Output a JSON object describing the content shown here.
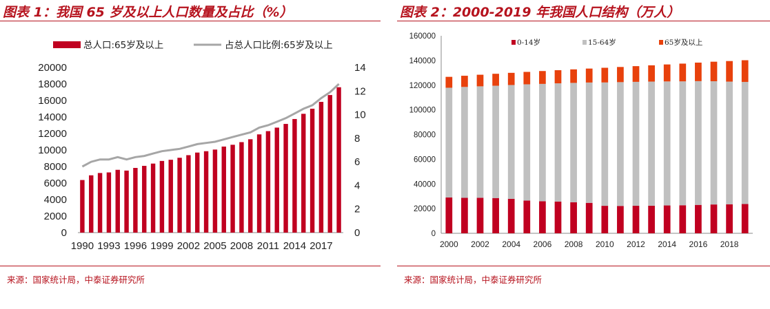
{
  "colors": {
    "brand_red": "#b6131e",
    "bar_red": "#c00020",
    "line_gray": "#a6a6a6",
    "seg_young": "#c00020",
    "seg_working": "#c0c0c0",
    "seg_old": "#e8410c"
  },
  "left": {
    "title": "图表 1：我国 65 岁及以上人口数量及占比（%）",
    "source": "来源：国家统计局，中泰证券研究所"
  },
  "right": {
    "title": "图表 2：2000-2019 年我国人口结构（万人）",
    "source": "来源：国家统计局，中泰证券研究所"
  },
  "chart_data": [
    {
      "type": "bar",
      "title": "我国 65 岁及以上人口数量及占比（%）",
      "legend_position": "top",
      "x": [
        1990,
        1991,
        1992,
        1993,
        1994,
        1995,
        1996,
        1997,
        1998,
        1999,
        2000,
        2001,
        2002,
        2003,
        2004,
        2005,
        2006,
        2007,
        2008,
        2009,
        2010,
        2011,
        2012,
        2013,
        2014,
        2015,
        2016,
        2017,
        2018,
        2019
      ],
      "x_tick_labels": [
        "1990",
        "1993",
        "1996",
        "1999",
        "2002",
        "2005",
        "2008",
        "2011",
        "2014",
        "2017"
      ],
      "ylim": [
        0,
        20000
      ],
      "y_ticks": [
        "0",
        "2000",
        "4000",
        "6000",
        "8000",
        "10000",
        "12000",
        "14000",
        "16000",
        "18000",
        "20000"
      ],
      "y2lim": [
        0,
        14
      ],
      "y2_ticks": [
        "0",
        "2",
        "4",
        "6",
        "8",
        "10",
        "12",
        "14"
      ],
      "series": [
        {
          "name": "总人口:65岁及以上",
          "type": "bar",
          "axis": "left",
          "values": [
            6368,
            6938,
            7218,
            7289,
            7603,
            7510,
            7833,
            8085,
            8359,
            8679,
            8821,
            9062,
            9377,
            9692,
            9857,
            10055,
            10419,
            10636,
            10956,
            11307,
            11894,
            12288,
            12714,
            13161,
            13755,
            14386,
            15003,
            15831,
            16658,
            17603
          ]
        },
        {
          "name": "占总人口比例:65岁及以上",
          "type": "line",
          "axis": "right",
          "values": [
            5.6,
            6.0,
            6.2,
            6.2,
            6.4,
            6.2,
            6.4,
            6.5,
            6.7,
            6.9,
            7.0,
            7.1,
            7.3,
            7.5,
            7.6,
            7.7,
            7.9,
            8.1,
            8.3,
            8.5,
            8.9,
            9.1,
            9.4,
            9.7,
            10.1,
            10.5,
            10.8,
            11.4,
            11.9,
            12.6
          ]
        }
      ]
    },
    {
      "type": "bar",
      "stacked": true,
      "title": "2000-2019 年我国人口结构（万人）",
      "legend_position": "top",
      "x": [
        2000,
        2001,
        2002,
        2003,
        2004,
        2005,
        2006,
        2007,
        2008,
        2009,
        2010,
        2011,
        2012,
        2013,
        2014,
        2015,
        2016,
        2017,
        2018,
        2019
      ],
      "x_tick_labels": [
        "2000",
        "2002",
        "2004",
        "2006",
        "2008",
        "2010",
        "2012",
        "2014",
        "2016",
        "2018"
      ],
      "ylim": [
        0,
        160000
      ],
      "y_ticks": [
        "0",
        "20000",
        "40000",
        "60000",
        "80000",
        "100000",
        "120000",
        "140000",
        "160000"
      ],
      "series": [
        {
          "name": "0-14岁",
          "values": [
            29012,
            28716,
            28774,
            28559,
            27947,
            26504,
            25961,
            25660,
            25166,
            24659,
            22259,
            22164,
            22287,
            22329,
            22558,
            22715,
            23008,
            23348,
            23523,
            23689
          ]
        },
        {
          "name": "15-64岁",
          "values": [
            88910,
            89849,
            90302,
            90976,
            92184,
            94197,
            95068,
            95833,
            96680,
            97484,
            99938,
            100283,
            100403,
            100582,
            100469,
            100361,
            100260,
            99829,
            99357,
            98910
          ]
        },
        {
          "name": "65岁及以上",
          "values": [
            8821,
            9062,
            9377,
            9692,
            9857,
            10055,
            10419,
            10636,
            10956,
            11307,
            11894,
            12288,
            12714,
            13161,
            13755,
            14386,
            15003,
            15831,
            16658,
            17603
          ]
        }
      ]
    }
  ]
}
